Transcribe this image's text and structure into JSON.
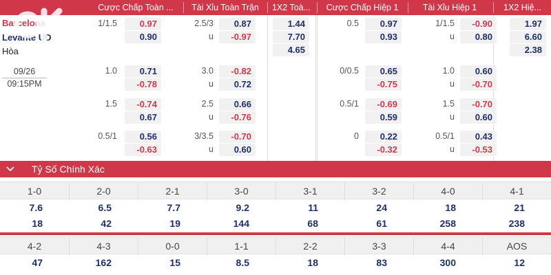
{
  "header": {
    "cols": [
      "Cược Chấp Toàn ...",
      "Tài Xỉu Toàn Trận",
      "1X2 Toà...",
      "Cược Chấp Hiệp 1",
      "Tài Xỉu Hiệp 1",
      "1X2 Hiệ..."
    ]
  },
  "match": {
    "home": "Barcelona",
    "away": "Levante UD",
    "draw": "Hòa",
    "date": "09/26",
    "time": "09:15PM"
  },
  "odds": {
    "main": {
      "ft_hcap_line": "1/1.5",
      "ft_hcap_home": "0.97",
      "ft_hcap_away": "0.90",
      "ft_ou_line": "2.5/3",
      "ft_ou_over": "0.87",
      "ft_ou_under_label": "u",
      "ft_ou_under": "-0.97",
      "ft_1x2_home": "1.44",
      "ft_1x2_away": "7.70",
      "ft_1x2_draw": "4.65",
      "h1_hcap_line": "0.5",
      "h1_hcap_home": "0.97",
      "h1_hcap_away": "0.93",
      "h1_ou_line": "1/1.5",
      "h1_ou_over": "-0.90",
      "h1_ou_under_label": "u",
      "h1_ou_under": "0.80",
      "h1_1x2_home": "1.97",
      "h1_1x2_away": "6.60",
      "h1_1x2_draw": "2.38"
    },
    "rows": [
      {
        "ft_hcap_line": "1.0",
        "ft_hcap_home": "0.71",
        "ft_hcap_away": "-0.78",
        "ft_ou_line": "3.0",
        "ft_ou_over": "-0.82",
        "ft_ou_under_label": "u",
        "ft_ou_under": "0.72",
        "h1_hcap_line": "0/0.5",
        "h1_hcap_home": "0.65",
        "h1_hcap_away": "-0.75",
        "h1_ou_line": "1.0",
        "h1_ou_over": "0.60",
        "h1_ou_under_label": "u",
        "h1_ou_under": "-0.70"
      },
      {
        "ft_hcap_line": "1.5",
        "ft_hcap_home": "-0.74",
        "ft_hcap_away": "0.67",
        "ft_ou_line": "2.5",
        "ft_ou_over": "0.66",
        "ft_ou_under_label": "u",
        "ft_ou_under": "-0.76",
        "h1_hcap_line": "0.5/1",
        "h1_hcap_home": "-0.69",
        "h1_hcap_away": "0.59",
        "h1_ou_line": "1.5",
        "h1_ou_over": "-0.70",
        "h1_ou_under_label": "u",
        "h1_ou_under": "0.60"
      },
      {
        "ft_hcap_line": "0.5/1",
        "ft_hcap_home": "0.56",
        "ft_hcap_away": "-0.63",
        "ft_ou_line": "3/3.5",
        "ft_ou_over": "-0.70",
        "ft_ou_under_label": "u",
        "ft_ou_under": "0.60",
        "h1_hcap_line": "0",
        "h1_hcap_home": "0.22",
        "h1_hcap_away": "-0.32",
        "h1_ou_line": "0.5/1",
        "h1_ou_over": "0.43",
        "h1_ou_under_label": "u",
        "h1_ou_under": "-0.53"
      }
    ]
  },
  "correct_score": {
    "title": "Tỷ Số Chính Xác",
    "row1": [
      {
        "score": "1-0",
        "home": "7.6",
        "away": "18"
      },
      {
        "score": "2-0",
        "home": "6.5",
        "away": "42"
      },
      {
        "score": "2-1",
        "home": "7.7",
        "away": "19"
      },
      {
        "score": "3-0",
        "home": "9.2",
        "away": "144"
      },
      {
        "score": "3-1",
        "home": "11",
        "away": "68"
      },
      {
        "score": "3-2",
        "home": "24",
        "away": "61"
      },
      {
        "score": "4-0",
        "home": "18",
        "away": "258"
      },
      {
        "score": "4-1",
        "home": "21",
        "away": "238"
      }
    ],
    "row2": [
      {
        "score": "4-2",
        "home": "47"
      },
      {
        "score": "4-3",
        "home": "162"
      },
      {
        "score": "0-0",
        "home": "15"
      },
      {
        "score": "1-1",
        "home": "8.5"
      },
      {
        "score": "2-2",
        "home": "18"
      },
      {
        "score": "3-3",
        "home": "83"
      },
      {
        "score": "4-4",
        "home": "300"
      },
      {
        "score": "AOS",
        "home": "12"
      }
    ]
  },
  "colors": {
    "accent": "#d0384a",
    "positive": "#1d2f6b",
    "negative": "#d0384a"
  },
  "icons": {
    "section_toggle": "chevron-down-icon"
  }
}
